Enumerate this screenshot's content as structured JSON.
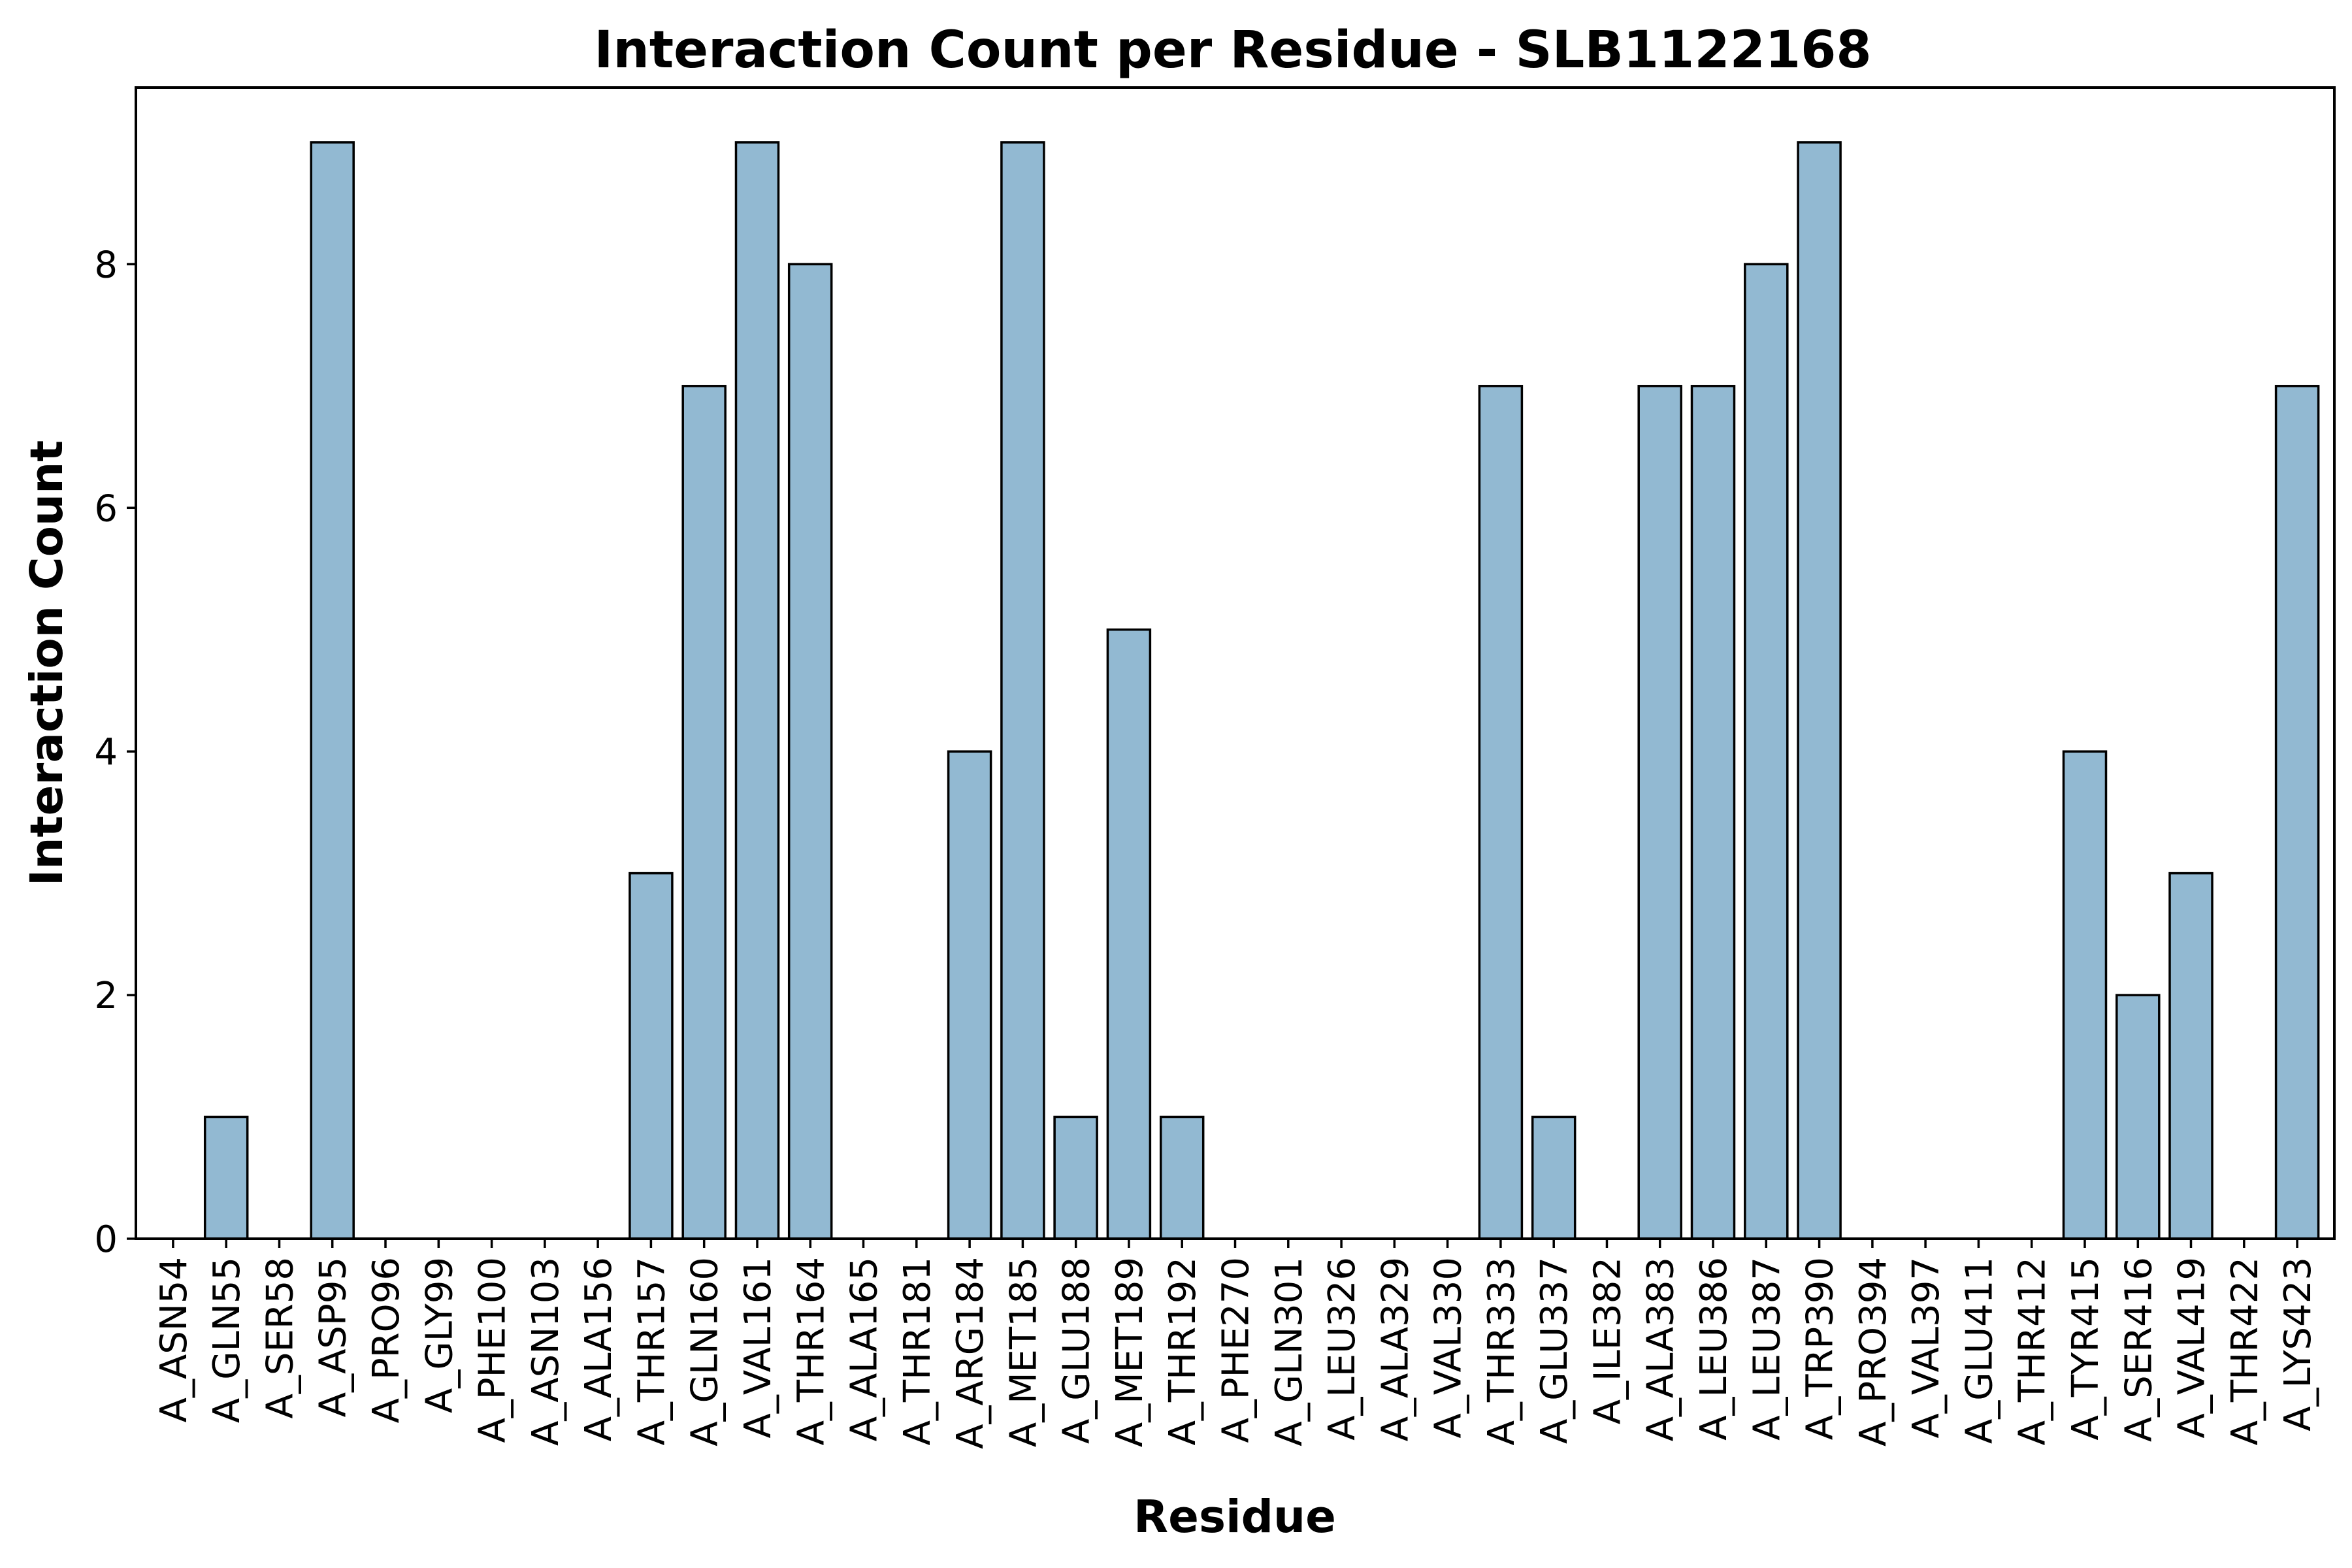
{
  "chart_data": {
    "type": "bar",
    "title": "Interaction Count per Residue - SLB1122168",
    "xlabel": "Residue",
    "ylabel": "Interaction Count",
    "ylim": [
      0,
      9.45
    ],
    "yticks": [
      0,
      2,
      4,
      6,
      8
    ],
    "grid": false,
    "bar_color": "#92b9d2",
    "edge_color": "#000000",
    "categories": [
      "A_ASN54",
      "A_GLN55",
      "A_SER58",
      "A_ASP95",
      "A_PRO96",
      "A_GLY99",
      "A_PHE100",
      "A_ASN103",
      "A_ALA156",
      "A_THR157",
      "A_GLN160",
      "A_VAL161",
      "A_THR164",
      "A_ALA165",
      "A_THR181",
      "A_ARG184",
      "A_MET185",
      "A_GLU188",
      "A_MET189",
      "A_THR192",
      "A_PHE270",
      "A_GLN301",
      "A_LEU326",
      "A_ALA329",
      "A_VAL330",
      "A_THR333",
      "A_GLU337",
      "A_ILE382",
      "A_ALA383",
      "A_LEU386",
      "A_LEU387",
      "A_TRP390",
      "A_PRO394",
      "A_VAL397",
      "A_GLU411",
      "A_THR412",
      "A_TYR415",
      "A_SER416",
      "A_VAL419",
      "A_THR422",
      "A_LYS423"
    ],
    "values": [
      0,
      1,
      0,
      9,
      0,
      0,
      0,
      0,
      0,
      3,
      7,
      9,
      8,
      0,
      0,
      4,
      9,
      1,
      5,
      1,
      0,
      0,
      0,
      0,
      0,
      7,
      1,
      0,
      7,
      7,
      8,
      9,
      0,
      0,
      0,
      0,
      4,
      2,
      3,
      0,
      7
    ]
  }
}
